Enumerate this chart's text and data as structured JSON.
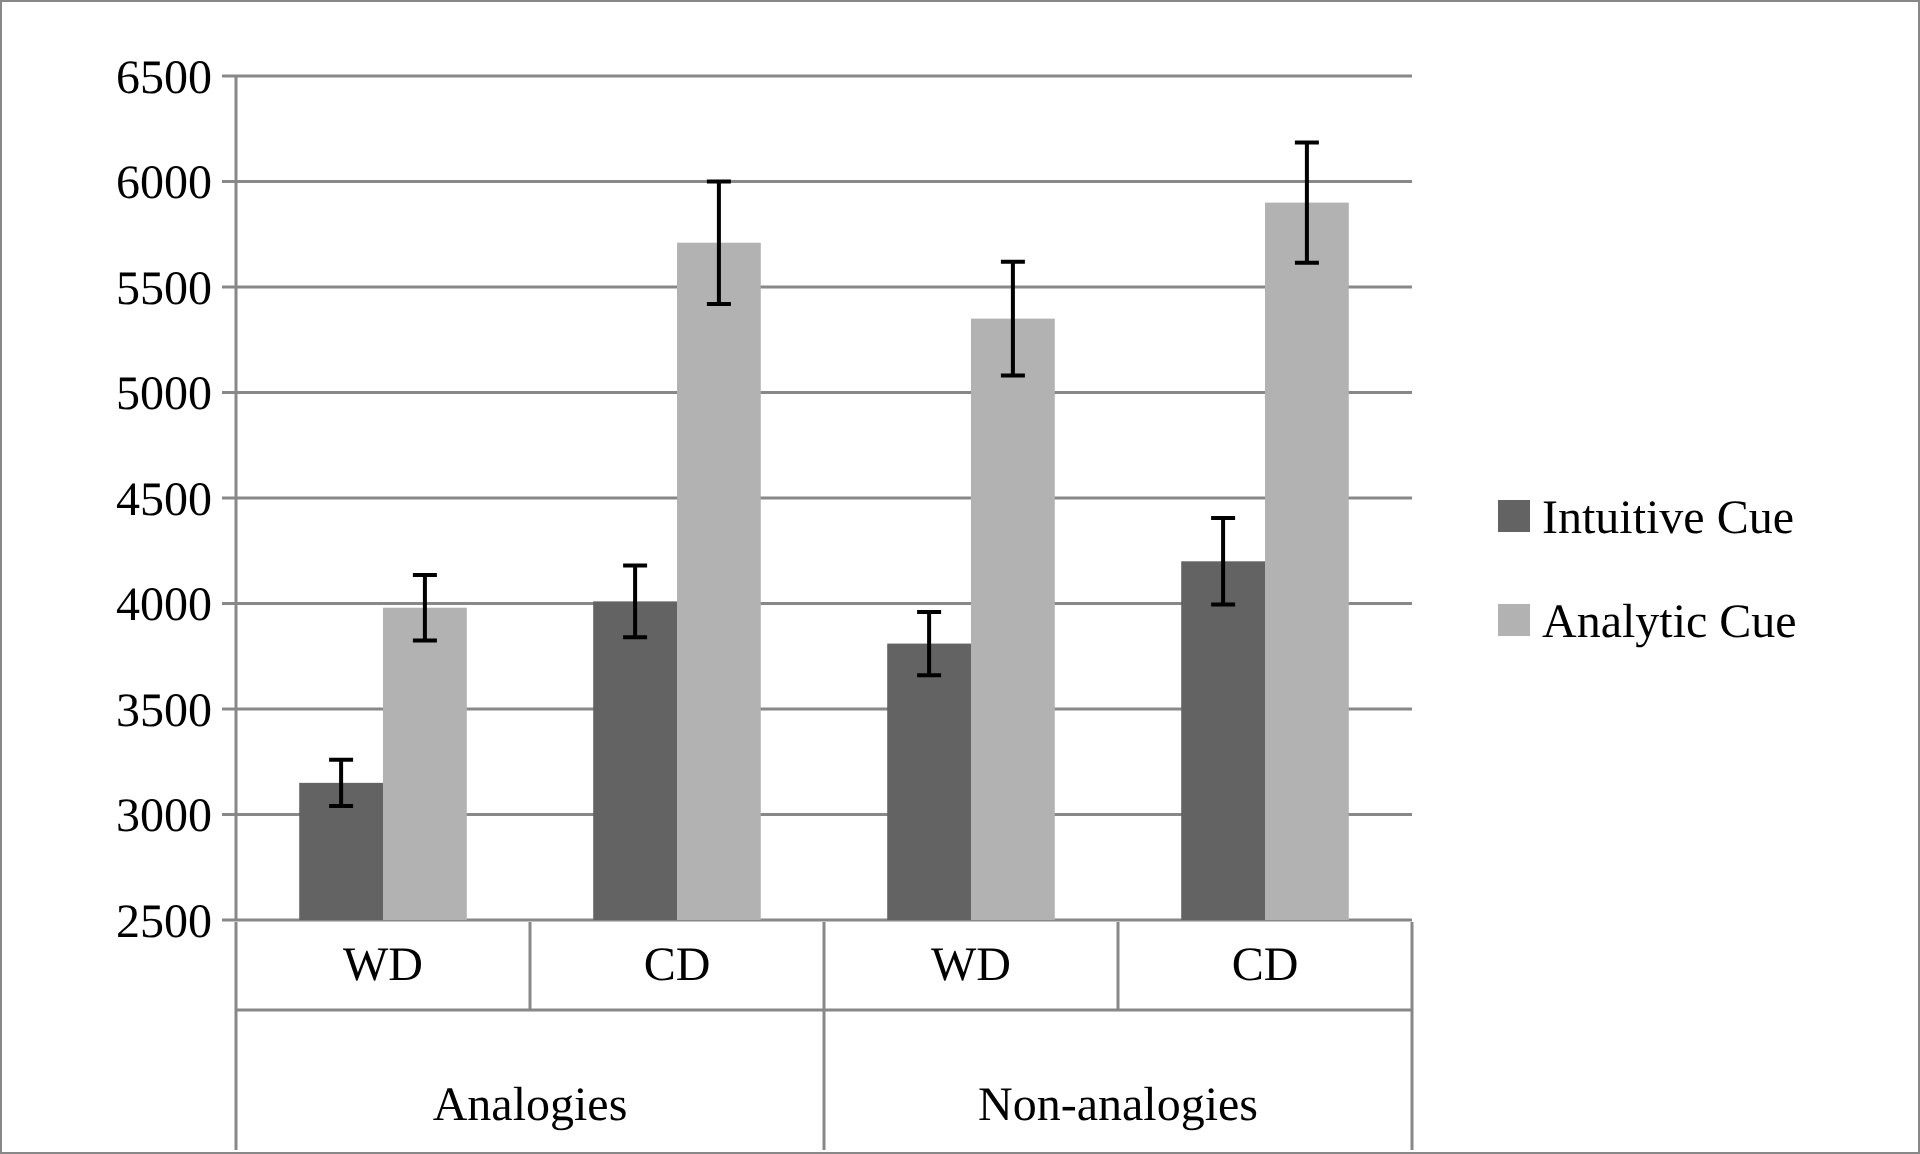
{
  "chart_data": {
    "type": "bar",
    "categories": [
      "WD",
      "CD",
      "WD",
      "CD"
    ],
    "annotations": [
      "Analogies",
      "Non-analogies"
    ],
    "series": [
      {
        "name": "Intuitive Cue",
        "color": "#636363",
        "values": [
          3150,
          4010,
          3810,
          4200
        ],
        "errors": [
          110,
          170,
          150,
          205
        ]
      },
      {
        "name": "Analytic Cue",
        "color": "#b2b2b2",
        "values": [
          3980,
          5710,
          5350,
          5900
        ],
        "errors": [
          155,
          290,
          270,
          285
        ]
      }
    ],
    "ylim": [
      2500,
      6500
    ],
    "yticks": [
      2500,
      3000,
      3500,
      4000,
      4500,
      5000,
      5500,
      6000,
      6500
    ],
    "grid": "y",
    "legend": "right"
  }
}
